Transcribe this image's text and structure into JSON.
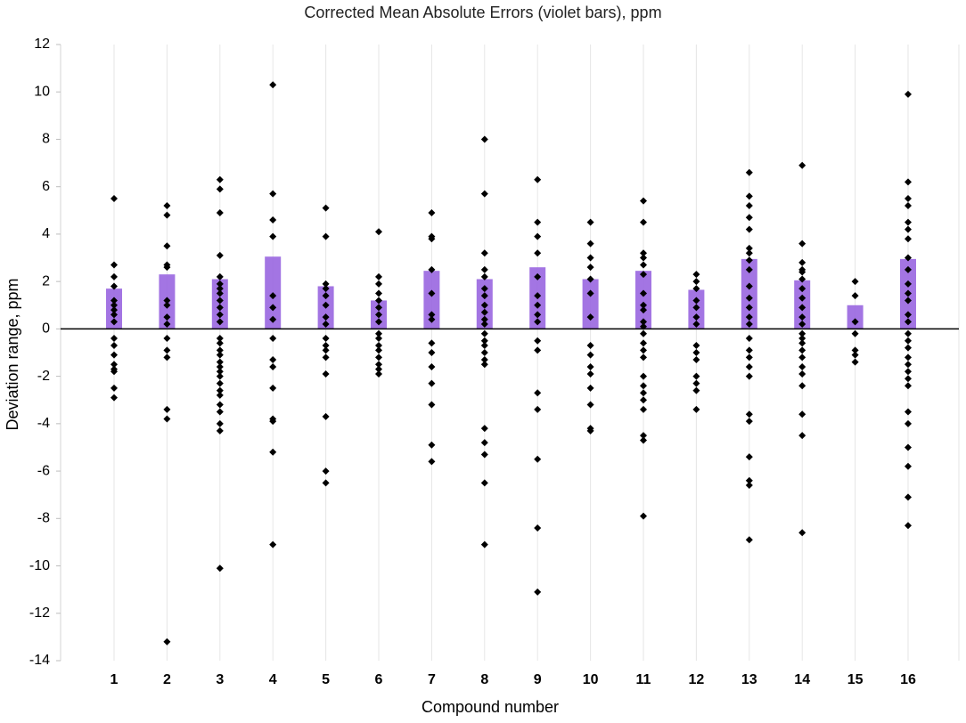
{
  "chart_data": {
    "type": "bar",
    "title": "Corrected Mean Absolute Errors (violet bars), ppm",
    "xlabel": "Compound number",
    "ylabel": "Deviation range, ppm",
    "ylim": [
      -14,
      12
    ],
    "yticks": [
      -14,
      -12,
      -10,
      -8,
      -6,
      -4,
      -2,
      0,
      2,
      4,
      6,
      8,
      10,
      12
    ],
    "categories": [
      "1",
      "2",
      "3",
      "4",
      "5",
      "6",
      "7",
      "8",
      "9",
      "10",
      "11",
      "12",
      "13",
      "14",
      "15",
      "16"
    ],
    "grid": "vertical gridlines on",
    "series": [
      {
        "kind": "bar",
        "values": [
          1.7,
          2.3,
          2.1,
          3.05,
          1.8,
          1.2,
          2.45,
          2.1,
          2.6,
          2.1,
          2.45,
          1.65,
          2.95,
          2.05,
          1.0,
          2.95
        ],
        "color": "#9966e0"
      },
      {
        "kind": "scatter",
        "color": "#000000",
        "points_by_category": [
          [
            5.5,
            2.7,
            2.2,
            1.8,
            1.2,
            1.0,
            0.8,
            0.6,
            0.3,
            -0.4,
            -0.7,
            -1.1,
            -1.5,
            -1.7,
            -1.8,
            -2.5,
            -2.9
          ],
          [
            5.2,
            4.8,
            3.5,
            2.7,
            2.6,
            1.2,
            1.0,
            0.5,
            0.2,
            -0.4,
            -0.9,
            -1.2,
            -3.4,
            -3.8,
            -13.2
          ],
          [
            6.3,
            5.9,
            4.9,
            3.1,
            2.2,
            1.9,
            1.7,
            1.5,
            1.2,
            0.9,
            0.6,
            0.3,
            -0.4,
            -0.6,
            -0.9,
            -1.1,
            -1.4,
            -1.6,
            -1.8,
            -2.0,
            -2.3,
            -2.6,
            -2.8,
            -3.2,
            -3.5,
            -4.0,
            -4.3,
            -10.1
          ],
          [
            10.3,
            5.7,
            4.6,
            3.9,
            1.4,
            0.9,
            0.4,
            -0.4,
            -1.3,
            -1.6,
            -2.5,
            -3.8,
            -3.9,
            -5.2,
            -9.1
          ],
          [
            5.1,
            3.9,
            1.9,
            1.7,
            1.4,
            1.0,
            0.5,
            0.2,
            -0.4,
            -0.7,
            -0.9,
            -1.2,
            -1.9,
            -3.7,
            -6.0,
            -6.5
          ],
          [
            4.1,
            2.2,
            1.9,
            1.5,
            1.2,
            0.9,
            0.6,
            0.3,
            -0.2,
            -0.4,
            -0.7,
            -0.9,
            -1.2,
            -1.5,
            -1.7,
            -1.9
          ],
          [
            4.9,
            3.9,
            3.8,
            2.5,
            1.5,
            0.6,
            0.4,
            -0.6,
            -1.0,
            -1.6,
            -2.3,
            -3.2,
            -4.9,
            -5.6
          ],
          [
            8.0,
            5.7,
            3.2,
            2.5,
            2.2,
            1.7,
            1.4,
            1.0,
            0.7,
            0.4,
            0.2,
            -0.2,
            -0.5,
            -0.7,
            -1.0,
            -1.3,
            -1.5,
            -4.2,
            -4.8,
            -5.3,
            -6.5,
            -9.1
          ],
          [
            6.3,
            4.5,
            3.9,
            3.2,
            2.2,
            1.4,
            1.0,
            0.6,
            0.3,
            -0.5,
            -0.9,
            -2.7,
            -3.4,
            -5.5,
            -8.4,
            -11.1
          ],
          [
            4.5,
            3.6,
            3.0,
            2.6,
            2.1,
            1.5,
            0.5,
            -0.7,
            -1.1,
            -1.6,
            -1.9,
            -2.5,
            -3.2,
            -4.2,
            -4.3
          ],
          [
            5.4,
            4.5,
            3.2,
            3.0,
            2.7,
            2.3,
            1.5,
            1.0,
            0.8,
            0.3,
            0.1,
            -0.2,
            -0.6,
            -0.9,
            -1.2,
            -2.0,
            -2.4,
            -2.7,
            -3.0,
            -3.4,
            -4.5,
            -4.7,
            -7.9
          ],
          [
            2.3,
            2.0,
            1.7,
            1.2,
            0.9,
            0.5,
            0.2,
            -0.7,
            -1.0,
            -1.3,
            -2.0,
            -2.3,
            -2.6,
            -3.4
          ],
          [
            6.6,
            5.6,
            5.2,
            4.7,
            4.2,
            3.4,
            3.2,
            2.9,
            2.5,
            1.8,
            1.3,
            0.9,
            0.5,
            0.2,
            -0.4,
            -0.9,
            -1.2,
            -1.6,
            -2.0,
            -3.6,
            -3.9,
            -5.4,
            -6.4,
            -6.6,
            -8.9
          ],
          [
            6.9,
            3.6,
            2.8,
            2.5,
            2.4,
            2.1,
            1.7,
            1.3,
            0.9,
            0.5,
            0.2,
            -0.2,
            -0.4,
            -0.6,
            -0.9,
            -1.2,
            -1.6,
            -1.9,
            -2.4,
            -3.6,
            -4.5,
            -8.6
          ],
          [
            2.0,
            1.4,
            0.3,
            -0.2,
            -0.9,
            -1.1,
            -1.4
          ],
          [
            9.9,
            6.2,
            5.5,
            5.2,
            4.5,
            4.2,
            3.8,
            3.0,
            2.5,
            1.9,
            1.5,
            1.2,
            0.6,
            0.3,
            -0.2,
            -0.5,
            -0.8,
            -1.2,
            -1.5,
            -1.8,
            -2.1,
            -2.4,
            -3.5,
            -4.0,
            -5.0,
            -5.8,
            -7.1,
            -8.3
          ]
        ]
      }
    ]
  }
}
